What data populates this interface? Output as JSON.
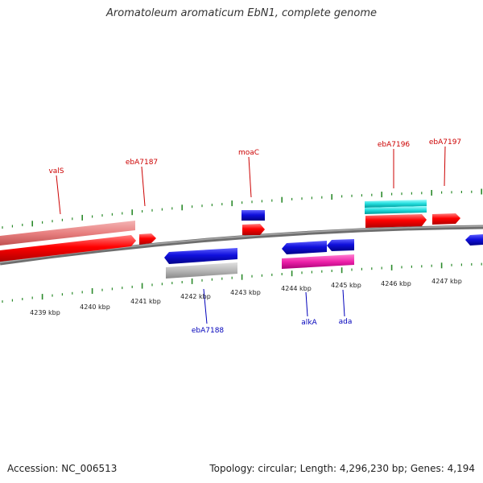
{
  "title": "Aromatoleum aromaticum EbN1, complete genome",
  "footer": {
    "accession": "Accession: NC_006513",
    "stats": "Topology: circular; Length: 4,296,230 bp; Genes: 4,194"
  },
  "colors": {
    "forward_label": "#cc0000",
    "reverse_label": "#0000bb",
    "tick": "#2a8a2a",
    "backbone": "#808080",
    "red": "#ff0000",
    "pink": "#e88080",
    "blue": "#1010dd",
    "grey": "#b8b8b8",
    "magenta": "#ee22aa",
    "cyan": "#22dddd"
  },
  "kbp_labels": [
    "4239 kbp",
    "4240 kbp",
    "4241 kbp",
    "4242 kbp",
    "4243 kbp",
    "4244 kbp",
    "4245 kbp",
    "4246 kbp",
    "4247 kbp"
  ],
  "forward_labels": [
    "valS",
    "ebA7187",
    "moaC",
    "ebA7196",
    "ebA7197"
  ],
  "reverse_labels": [
    "ebA7188",
    "alkA",
    "ada"
  ]
}
